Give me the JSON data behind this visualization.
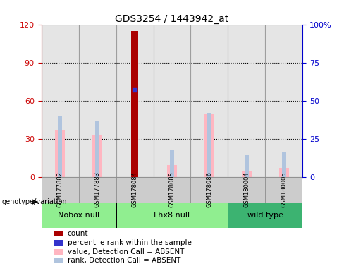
{
  "title": "GDS3254 / 1443942_at",
  "samples": [
    "GSM177882",
    "GSM177883",
    "GSM178084",
    "GSM178085",
    "GSM178086",
    "GSM180004",
    "GSM180005"
  ],
  "count_values": [
    0,
    0,
    115,
    0,
    0,
    0,
    0
  ],
  "percentile_rank_values": [
    0,
    0,
    57,
    0,
    0,
    0,
    0
  ],
  "value_absent": [
    37,
    33,
    0,
    9,
    50,
    5,
    7
  ],
  "rank_absent": [
    40,
    37,
    0,
    18,
    42,
    14,
    16
  ],
  "groups": [
    {
      "name": "Nobox null",
      "start": 0,
      "end": 1,
      "color": "#90EE90"
    },
    {
      "name": "Lhx8 null",
      "start": 2,
      "end": 4,
      "color": "#90EE90"
    },
    {
      "name": "wild type",
      "start": 5,
      "end": 6,
      "color": "#3CB371"
    }
  ],
  "ylim_left": [
    0,
    120
  ],
  "ylim_right": [
    0,
    100
  ],
  "yticks_left": [
    0,
    30,
    60,
    90,
    120
  ],
  "yticks_right": [
    0,
    25,
    50,
    75,
    100
  ],
  "ytick_labels_right": [
    "0",
    "25",
    "50",
    "75",
    "100%"
  ],
  "count_color": "#AA0000",
  "percentile_color": "#3333CC",
  "value_absent_color": "#FFB6C1",
  "rank_absent_color": "#B0C4DE",
  "bg_color": "#FFFFFF",
  "plot_bg_color": "#FFFFFF",
  "axis_color_left": "#CC0000",
  "axis_color_right": "#0000CC",
  "col_bg_color": "#CCCCCC",
  "legend_items": [
    {
      "color": "#AA0000",
      "label": "count"
    },
    {
      "color": "#3333CC",
      "label": "percentile rank within the sample"
    },
    {
      "color": "#FFB6C1",
      "label": "value, Detection Call = ABSENT"
    },
    {
      "color": "#B0C4DE",
      "label": "rank, Detection Call = ABSENT"
    }
  ]
}
